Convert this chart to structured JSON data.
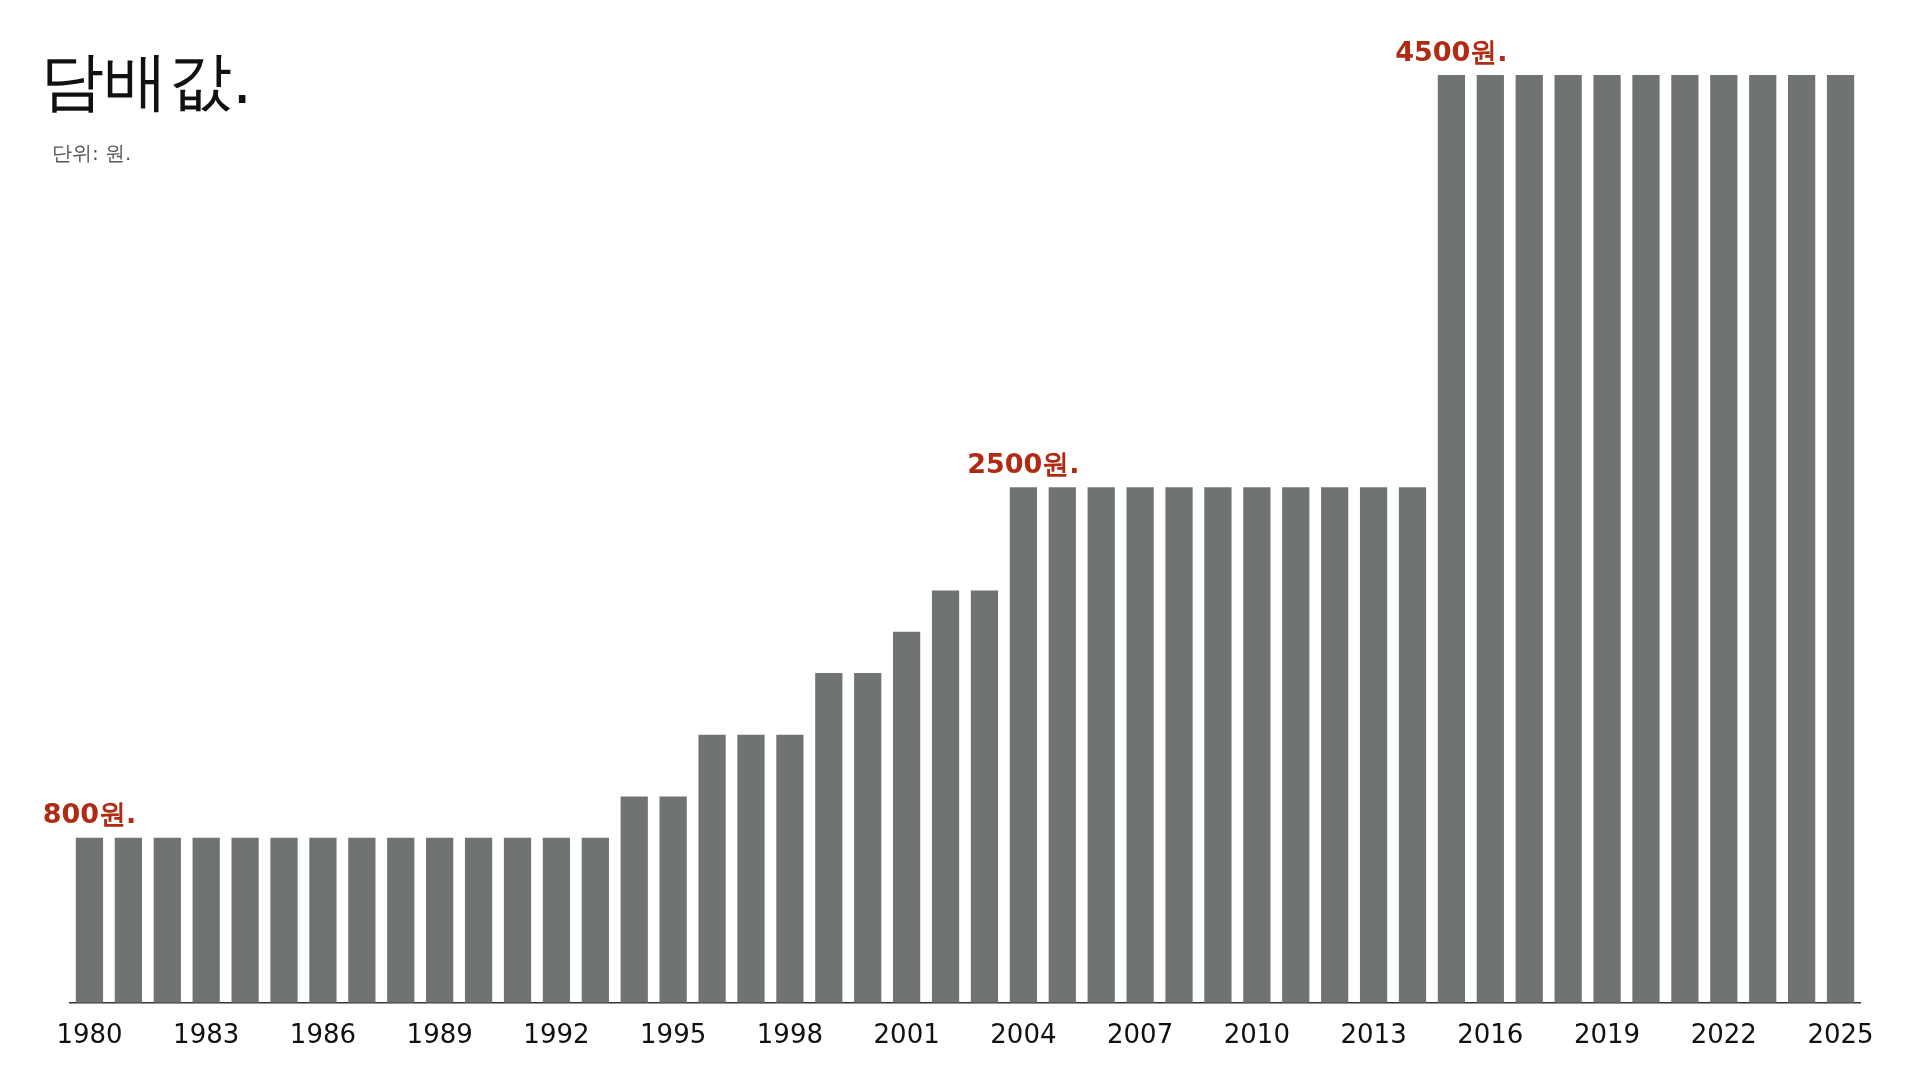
{
  "chart_data": {
    "type": "bar",
    "title": "담배값.",
    "subtitle": "단위: 원.",
    "categories": [
      "1980",
      null,
      null,
      "1983",
      null,
      null,
      "1986",
      null,
      null,
      "1989",
      null,
      null,
      "1992",
      null,
      null,
      "1995",
      null,
      null,
      "1998",
      null,
      null,
      "2001",
      null,
      null,
      "2004",
      null,
      null,
      "2007",
      null,
      null,
      "2010",
      null,
      null,
      "2013",
      null,
      null,
      "2016",
      null,
      null,
      "2019",
      null,
      null,
      "2022",
      null,
      null,
      "2025"
    ],
    "values": [
      800,
      800,
      800,
      800,
      800,
      800,
      800,
      800,
      800,
      800,
      800,
      800,
      800,
      800,
      1000,
      1000,
      1300,
      1300,
      1300,
      1600,
      1600,
      1800,
      2000,
      2000,
      2500,
      2500,
      2500,
      2500,
      2500,
      2500,
      2500,
      2500,
      2500,
      2500,
      2500,
      4500,
      4500,
      4500,
      4500,
      4500,
      4500,
      4500,
      4500,
      4500,
      4500,
      4500
    ],
    "value_labels": [
      "800원.",
      null,
      null,
      null,
      null,
      null,
      null,
      null,
      null,
      null,
      null,
      null,
      null,
      null,
      null,
      null,
      null,
      null,
      null,
      null,
      null,
      null,
      null,
      null,
      "2500원.",
      null,
      null,
      null,
      null,
      null,
      null,
      null,
      null,
      null,
      null,
      "4500원.",
      null,
      null,
      null,
      null,
      null,
      null,
      null,
      null,
      null,
      null
    ],
    "color": "#6f7472",
    "grid": false,
    "legend": false
  }
}
